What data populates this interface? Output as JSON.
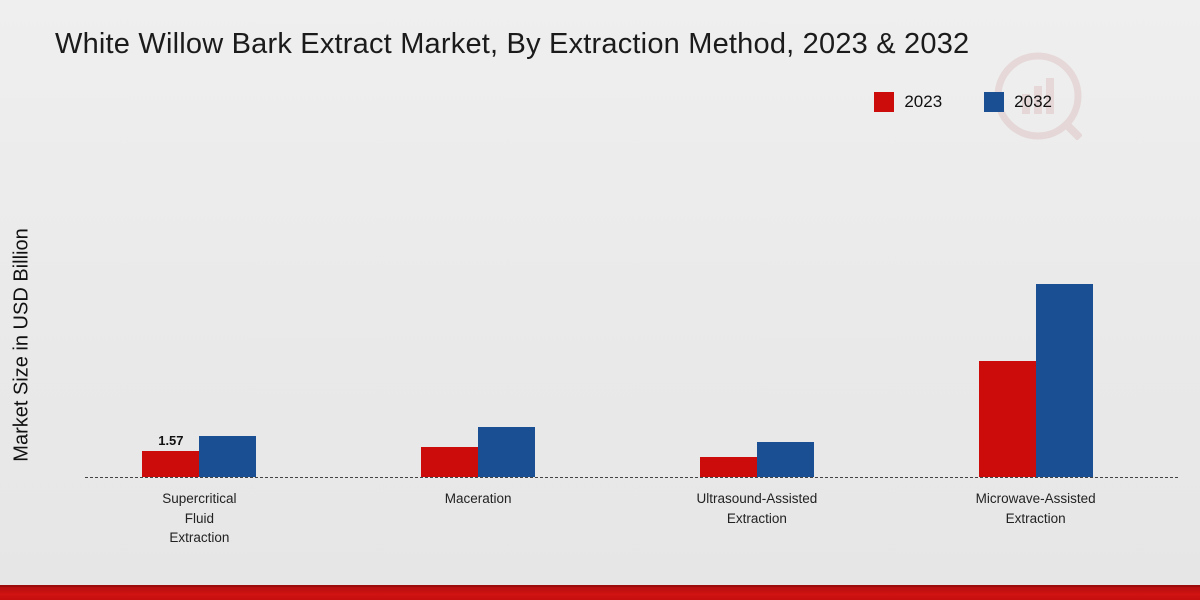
{
  "title": "White Willow Bark Extract Market, By Extraction Method, 2023 & 2032",
  "y_axis_label": "Market Size in USD Billion",
  "legend": [
    {
      "label": "2023",
      "color": "#cc0b0b"
    },
    {
      "label": "2032",
      "color": "#1b4f94"
    }
  ],
  "colors": {
    "series_2023": "#cc0b0b",
    "series_2032": "#1b4f94",
    "footer_band": "#c40e0e",
    "background": "#ebebeb"
  },
  "category_label_lines": [
    [
      "Supercritical",
      "Fluid",
      "Extraction"
    ],
    [
      "Maceration"
    ],
    [
      "Ultrasound-Assisted",
      "Extraction"
    ],
    [
      "Microwave-Assisted",
      "Extraction"
    ]
  ],
  "chart_data": {
    "type": "bar",
    "title": "White Willow Bark Extract Market, By Extraction Method, 2023 & 2032",
    "ylabel": "Market Size in USD Billion",
    "categories": [
      "Supercritical Fluid Extraction",
      "Maceration",
      "Ultrasound-Assisted Extraction",
      "Microwave-Assisted Extraction"
    ],
    "series": [
      {
        "name": "2023",
        "values": [
          1.57,
          1.8,
          1.2,
          7.0
        ]
      },
      {
        "name": "2032",
        "values": [
          2.5,
          3.0,
          2.1,
          11.7
        ]
      }
    ],
    "ylim": [
      0,
      12
    ],
    "grid": false,
    "legend_position": "top-right",
    "data_labels": [
      {
        "series": "2023",
        "category_index": 0,
        "text": "1.57"
      }
    ]
  }
}
